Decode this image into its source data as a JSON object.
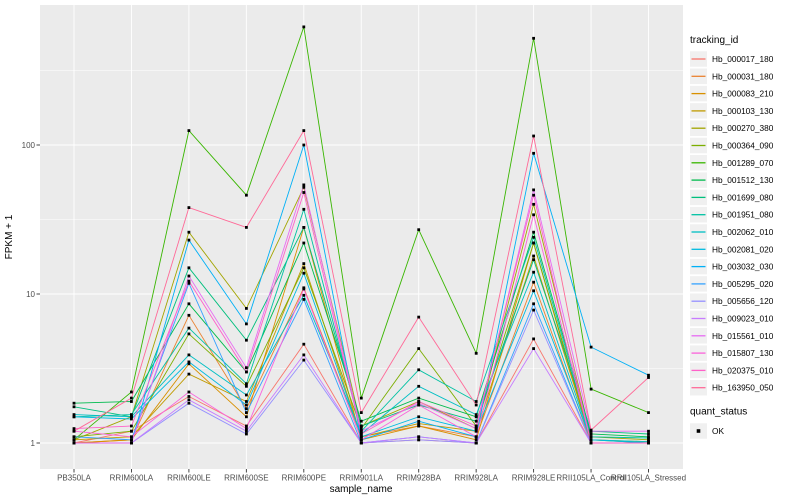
{
  "chart_data": {
    "type": "line",
    "title": "",
    "xlabel": "sample_name",
    "ylabel": "FPKM + 1",
    "y_scale": "log10",
    "y_ticks": [
      1,
      10,
      100
    ],
    "y_tick_labels": [
      "1",
      "10",
      "100"
    ],
    "y_minor_ticks": [
      3.1623,
      31.623,
      316.23
    ],
    "grid": true,
    "legend_position": "right",
    "point_shape": "filled-square",
    "categories": [
      "PB350LA",
      "RRIM600LA",
      "RRIM600LE",
      "RRIM600SE",
      "RRIM600PE",
      "RRIM901LA",
      "RRIM928BA",
      "RRIM928LA",
      "RRIM928LE",
      "RRII105LA_Control",
      "RRII105LA_Stressed"
    ],
    "series": [
      {
        "name": "Hb_000017_180",
        "color": "#F8766D",
        "values": [
          1.0,
          1.2,
          2.05,
          1.3,
          4.6,
          1.0,
          1.05,
          1.0,
          5.0,
          1.0,
          1.0
        ]
      },
      {
        "name": "Hb_000031_180",
        "color": "#EA8331",
        "values": [
          1.0,
          1.05,
          7.2,
          1.7,
          11.0,
          1.1,
          1.3,
          1.1,
          12.0,
          1.0,
          1.0
        ]
      },
      {
        "name": "Hb_000083_210",
        "color": "#D89000",
        "values": [
          1.0,
          1.05,
          3.4,
          1.5,
          28.0,
          1.05,
          1.3,
          1.05,
          22.0,
          1.0,
          1.0
        ]
      },
      {
        "name": "Hb_000103_130",
        "color": "#C09B00",
        "values": [
          1.05,
          1.1,
          2.9,
          1.9,
          16.0,
          1.1,
          1.35,
          1.2,
          18.0,
          1.05,
          1.02
        ]
      },
      {
        "name": "Hb_000270_380",
        "color": "#A3A500",
        "values": [
          1.05,
          1.5,
          26.0,
          8.0,
          52.0,
          1.3,
          1.9,
          1.25,
          40.0,
          1.1,
          1.05
        ]
      },
      {
        "name": "Hb_000364_090",
        "color": "#7CAE00",
        "values": [
          1.1,
          1.2,
          5.4,
          2.4,
          15.0,
          1.25,
          4.3,
          1.3,
          22.0,
          1.05,
          1.0
        ]
      },
      {
        "name": "Hb_001289_070",
        "color": "#39B600",
        "values": [
          1.05,
          2.2,
          125.0,
          46.0,
          620.0,
          2.0,
          27.0,
          4.0,
          520.0,
          2.3,
          1.6
        ]
      },
      {
        "name": "Hb_001512_130",
        "color": "#00BB4E",
        "values": [
          1.85,
          1.9,
          8.6,
          3.0,
          22.0,
          1.4,
          2.0,
          1.5,
          26.0,
          1.15,
          1.1
        ]
      },
      {
        "name": "Hb_001699_080",
        "color": "#00BF7D",
        "values": [
          1.75,
          1.5,
          15.0,
          4.9,
          28.0,
          1.3,
          1.8,
          1.4,
          17.0,
          1.2,
          1.15
        ]
      },
      {
        "name": "Hb_001951_080",
        "color": "#00C1A3",
        "values": [
          1.5,
          1.55,
          5.9,
          2.5,
          37.0,
          1.2,
          3.1,
          1.9,
          24.0,
          1.1,
          1.08
        ]
      },
      {
        "name": "Hb_002062_010",
        "color": "#00BFC4",
        "values": [
          1.55,
          1.5,
          3.9,
          2.1,
          9.8,
          1.15,
          2.4,
          1.55,
          14.0,
          1.05,
          1.02
        ]
      },
      {
        "name": "Hb_002081_020",
        "color": "#00BAE0",
        "values": [
          1.5,
          1.45,
          3.5,
          1.8,
          13.8,
          1.1,
          1.5,
          1.2,
          10.5,
          1.05,
          1.0
        ]
      },
      {
        "name": "Hb_003032_030",
        "color": "#00B0F6",
        "values": [
          1.0,
          1.0,
          23.0,
          6.3,
          100.0,
          1.05,
          1.4,
          1.1,
          88.0,
          4.4,
          2.85
        ]
      },
      {
        "name": "Hb_005295_020",
        "color": "#35A2FF",
        "values": [
          1.1,
          1.05,
          11.8,
          1.6,
          9.2,
          1.0,
          1.1,
          1.0,
          8.6,
          1.0,
          1.0
        ]
      },
      {
        "name": "Hb_005656_120",
        "color": "#9590FF",
        "values": [
          1.0,
          1.0,
          1.85,
          1.15,
          3.6,
          1.0,
          1.05,
          1.0,
          7.8,
          1.0,
          1.0
        ]
      },
      {
        "name": "Hb_009023_010",
        "color": "#C77CFF",
        "values": [
          1.0,
          1.0,
          1.95,
          1.2,
          3.9,
          1.0,
          1.1,
          1.0,
          4.3,
          1.0,
          1.0
        ]
      },
      {
        "name": "Hb_015561_010",
        "color": "#E76BF3",
        "values": [
          1.0,
          1.0,
          13.2,
          3.2,
          54.0,
          1.2,
          1.85,
          1.25,
          50.0,
          1.2,
          1.2
        ]
      },
      {
        "name": "Hb_015807_130",
        "color": "#FA62DB",
        "values": [
          1.2,
          1.1,
          2.2,
          1.25,
          10.8,
          1.05,
          1.8,
          1.1,
          34.0,
          1.0,
          1.0
        ]
      },
      {
        "name": "Hb_020375_010",
        "color": "#FF61C9",
        "values": [
          1.25,
          1.3,
          12.2,
          3.0,
          48.0,
          1.15,
          1.9,
          1.3,
          46.0,
          1.0,
          1.0
        ]
      },
      {
        "name": "Hb_163950_050",
        "color": "#FF6A98",
        "values": [
          1.2,
          2.0,
          38.0,
          28.0,
          125.0,
          1.6,
          7.0,
          1.8,
          115.0,
          1.22,
          2.75
        ]
      }
    ],
    "legend": {
      "color_title": "tracking_id",
      "shape_title": "quant_status",
      "shape_items": [
        {
          "label": "OK"
        }
      ]
    }
  },
  "style": {
    "panel_bg": "#EBEBEB",
    "grid_color": "#FFFFFF",
    "tick_mark_color": "#333333",
    "tick_label_color": "#4D4D4D",
    "title_color": "#000000",
    "legend_key_bg": "#F0F0F0",
    "point_color": "#000000",
    "background": "#FFFFFF"
  }
}
